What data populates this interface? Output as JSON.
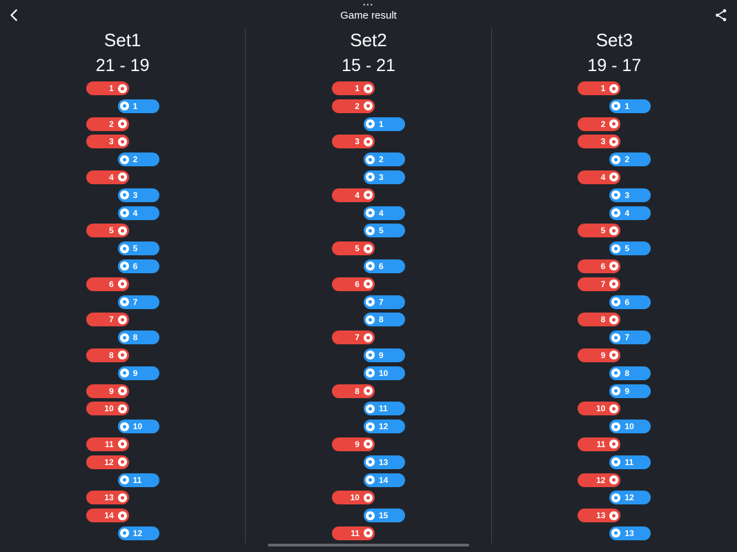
{
  "header": {
    "title": "Game result",
    "dots": "•••",
    "back_icon": "chevron-left",
    "share_icon": "share"
  },
  "colors": {
    "background": "#20242A",
    "red": "#E8463E",
    "blue": "#2997F3",
    "divider": "#3F444B",
    "scrollbar": "#64686E"
  },
  "sets": [
    {
      "name": "Set1",
      "score": "21 - 19",
      "points": [
        {
          "side": "red",
          "n": 1
        },
        {
          "side": "blue",
          "n": 1
        },
        {
          "side": "red",
          "n": 2
        },
        {
          "side": "red",
          "n": 3
        },
        {
          "side": "blue",
          "n": 2
        },
        {
          "side": "red",
          "n": 4
        },
        {
          "side": "blue",
          "n": 3
        },
        {
          "side": "blue",
          "n": 4
        },
        {
          "side": "red",
          "n": 5
        },
        {
          "side": "blue",
          "n": 5
        },
        {
          "side": "blue",
          "n": 6
        },
        {
          "side": "red",
          "n": 6
        },
        {
          "side": "blue",
          "n": 7
        },
        {
          "side": "red",
          "n": 7
        },
        {
          "side": "blue",
          "n": 8
        },
        {
          "side": "red",
          "n": 8
        },
        {
          "side": "blue",
          "n": 9
        },
        {
          "side": "red",
          "n": 9
        },
        {
          "side": "red",
          "n": 10
        },
        {
          "side": "blue",
          "n": 10
        },
        {
          "side": "red",
          "n": 11
        },
        {
          "side": "red",
          "n": 12
        },
        {
          "side": "blue",
          "n": 11
        },
        {
          "side": "red",
          "n": 13
        },
        {
          "side": "red",
          "n": 14
        },
        {
          "side": "blue",
          "n": 12
        }
      ]
    },
    {
      "name": "Set2",
      "score": "15 - 21",
      "points": [
        {
          "side": "red",
          "n": 1
        },
        {
          "side": "red",
          "n": 2
        },
        {
          "side": "blue",
          "n": 1
        },
        {
          "side": "red",
          "n": 3
        },
        {
          "side": "blue",
          "n": 2
        },
        {
          "side": "blue",
          "n": 3
        },
        {
          "side": "red",
          "n": 4
        },
        {
          "side": "blue",
          "n": 4
        },
        {
          "side": "blue",
          "n": 5
        },
        {
          "side": "red",
          "n": 5
        },
        {
          "side": "blue",
          "n": 6
        },
        {
          "side": "red",
          "n": 6
        },
        {
          "side": "blue",
          "n": 7
        },
        {
          "side": "blue",
          "n": 8
        },
        {
          "side": "red",
          "n": 7
        },
        {
          "side": "blue",
          "n": 9
        },
        {
          "side": "blue",
          "n": 10
        },
        {
          "side": "red",
          "n": 8
        },
        {
          "side": "blue",
          "n": 11
        },
        {
          "side": "blue",
          "n": 12
        },
        {
          "side": "red",
          "n": 9
        },
        {
          "side": "blue",
          "n": 13
        },
        {
          "side": "blue",
          "n": 14
        },
        {
          "side": "red",
          "n": 10
        },
        {
          "side": "blue",
          "n": 15
        },
        {
          "side": "red",
          "n": 11
        }
      ]
    },
    {
      "name": "Set3",
      "score": "19 - 17",
      "points": [
        {
          "side": "red",
          "n": 1
        },
        {
          "side": "blue",
          "n": 1
        },
        {
          "side": "red",
          "n": 2
        },
        {
          "side": "red",
          "n": 3
        },
        {
          "side": "blue",
          "n": 2
        },
        {
          "side": "red",
          "n": 4
        },
        {
          "side": "blue",
          "n": 3
        },
        {
          "side": "blue",
          "n": 4
        },
        {
          "side": "red",
          "n": 5
        },
        {
          "side": "blue",
          "n": 5
        },
        {
          "side": "red",
          "n": 6
        },
        {
          "side": "red",
          "n": 7
        },
        {
          "side": "blue",
          "n": 6
        },
        {
          "side": "red",
          "n": 8
        },
        {
          "side": "blue",
          "n": 7
        },
        {
          "side": "red",
          "n": 9
        },
        {
          "side": "blue",
          "n": 8
        },
        {
          "side": "blue",
          "n": 9
        },
        {
          "side": "red",
          "n": 10
        },
        {
          "side": "blue",
          "n": 10
        },
        {
          "side": "red",
          "n": 11
        },
        {
          "side": "blue",
          "n": 11
        },
        {
          "side": "red",
          "n": 12
        },
        {
          "side": "blue",
          "n": 12
        },
        {
          "side": "red",
          "n": 13
        },
        {
          "side": "blue",
          "n": 13
        }
      ]
    }
  ]
}
